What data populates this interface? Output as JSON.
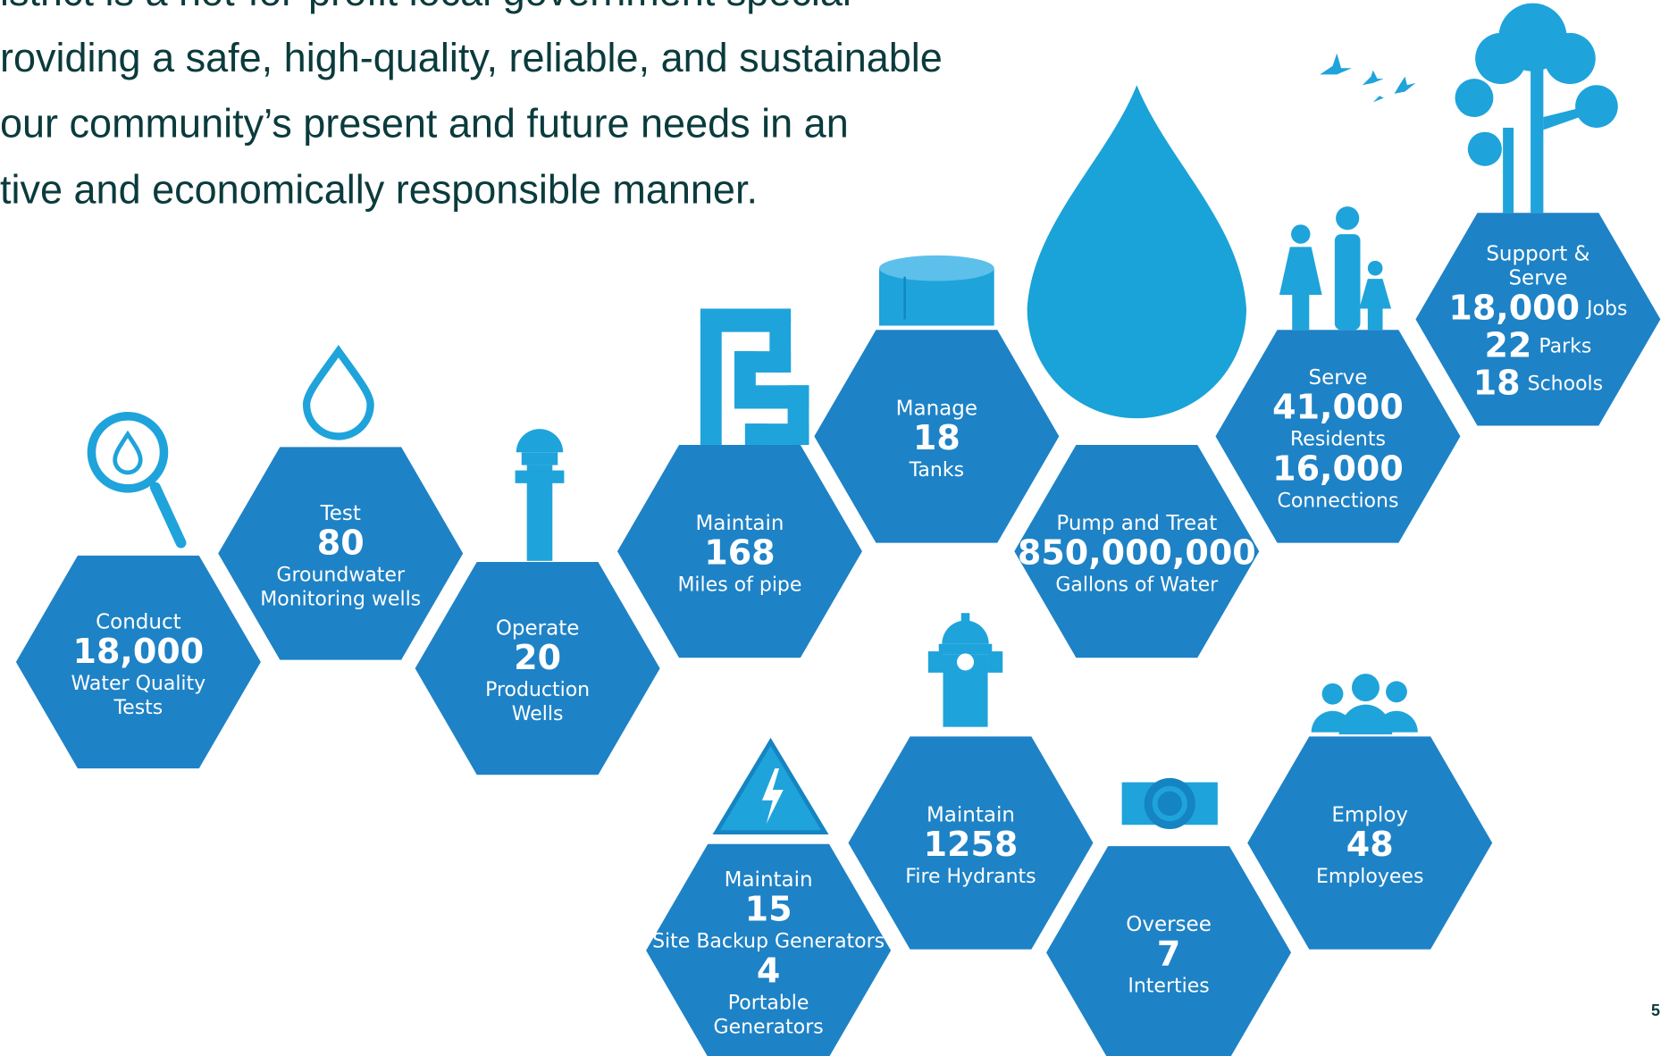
{
  "intro": {
    "lines": [
      "istrict is a not-for-profit local government special",
      "roviding a safe, high-quality, reliable, and sustainable",
      "our community’s present and future needs in an",
      "tive and economically responsible manner."
    ]
  },
  "hexagons": [
    {
      "action": [
        "Conduct"
      ],
      "stats": [
        {
          "number": "18,000",
          "label": [
            "Water Quality",
            "Tests"
          ]
        }
      ]
    },
    {
      "action": [
        "Test"
      ],
      "stats": [
        {
          "number": "80",
          "label": [
            "Groundwater",
            "Monitoring wells"
          ]
        }
      ]
    },
    {
      "action": [
        "Operate"
      ],
      "stats": [
        {
          "number": "20",
          "label": [
            "Production",
            "Wells"
          ]
        }
      ]
    },
    {
      "action": [
        "Maintain"
      ],
      "stats": [
        {
          "number": "168",
          "label": [
            "Miles of pipe"
          ]
        }
      ]
    },
    {
      "action": [
        "Manage"
      ],
      "stats": [
        {
          "number": "18",
          "label": [
            "Tanks"
          ]
        }
      ]
    },
    {
      "action": [
        "Pump and Treat"
      ],
      "stats": [
        {
          "number": "850,000,000",
          "label": [
            "Gallons of Water"
          ]
        }
      ]
    },
    {
      "action": [
        "Serve"
      ],
      "stats": [
        {
          "number": "41,000",
          "label": [
            "Residents"
          ]
        },
        {
          "number": "16,000",
          "label": [
            "Connections"
          ]
        }
      ]
    },
    {
      "action": [
        "Support &",
        "Serve"
      ],
      "stats": [
        {
          "number": "18,000",
          "label": [
            "Jobs"
          ]
        },
        {
          "number": "22",
          "label": [
            "Parks"
          ]
        },
        {
          "number": "18",
          "label": [
            "Schools"
          ]
        }
      ]
    },
    {
      "action": [
        "Maintain"
      ],
      "stats": [
        {
          "number": "15",
          "label": [
            "Site Backup Generators"
          ]
        },
        {
          "number": "4",
          "label": [
            "Portable",
            "Generators"
          ]
        }
      ]
    },
    {
      "action": [
        "Maintain"
      ],
      "stats": [
        {
          "number": "1258",
          "label": [
            "Fire Hydrants"
          ]
        }
      ]
    },
    {
      "action": [
        "Oversee"
      ],
      "stats": [
        {
          "number": "7",
          "label": [
            "Interties"
          ]
        }
      ]
    },
    {
      "action": [
        "Employ"
      ],
      "stats": [
        {
          "number": "48",
          "label": [
            "Employees"
          ]
        }
      ]
    }
  ],
  "page_number": "5"
}
